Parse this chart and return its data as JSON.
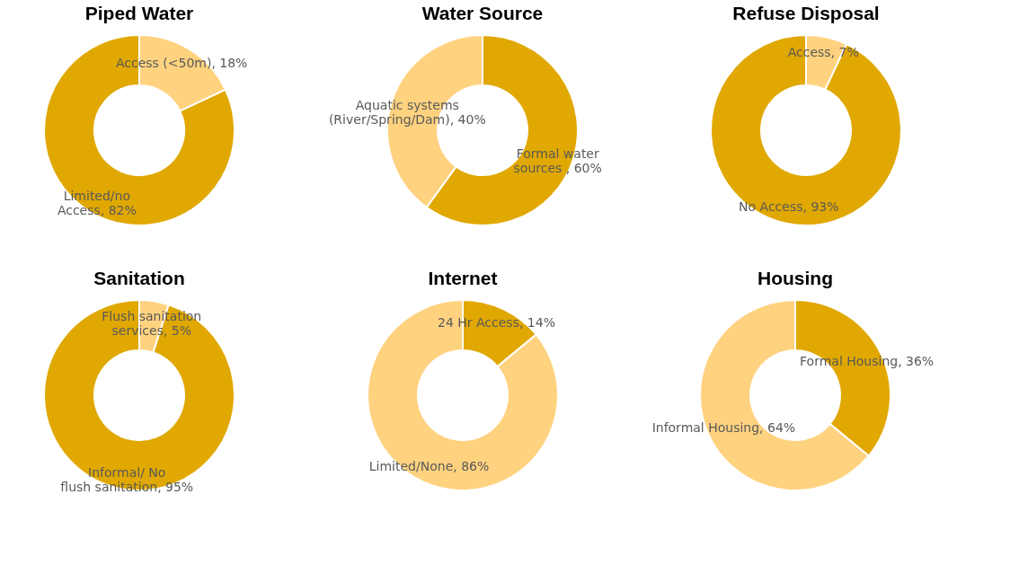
{
  "chart_data": [
    {
      "type": "donut",
      "title": "Piped Water",
      "categories": [
        "Access (<50m)",
        "Limited/no Access"
      ],
      "values": [
        18,
        82
      ],
      "value_labels": [
        "18%",
        "82%"
      ],
      "colors": [
        "#ffd27f",
        "#e0a800"
      ]
    },
    {
      "type": "donut",
      "title": "Water Source",
      "categories": [
        "Formal water sources ",
        "Aquatic systems (River/Spring/Dam)"
      ],
      "values": [
        60,
        40
      ],
      "value_labels": [
        "60%",
        "40%"
      ],
      "colors": [
        "#e0a800",
        "#ffd27f"
      ]
    },
    {
      "type": "donut",
      "title": "Refuse Disposal",
      "categories": [
        "Access",
        "No Access"
      ],
      "values": [
        7,
        93
      ],
      "value_labels": [
        "7%",
        "93%"
      ],
      "colors": [
        "#ffd27f",
        "#e0a800"
      ]
    },
    {
      "type": "donut",
      "title": "Sanitation",
      "categories": [
        "Flush sanitation services",
        "Informal/ No flush sanitation"
      ],
      "values": [
        5,
        95
      ],
      "value_labels": [
        "5%",
        "95%"
      ],
      "colors": [
        "#ffd27f",
        "#e0a800"
      ]
    },
    {
      "type": "donut",
      "title": "Internet",
      "categories": [
        "24 Hr Access",
        "Limited/None"
      ],
      "values": [
        14,
        86
      ],
      "value_labels": [
        "14%",
        "86%"
      ],
      "colors": [
        "#e0a800",
        "#ffd27f"
      ]
    },
    {
      "type": "donut",
      "title": "Housing",
      "categories": [
        "Formal Housing",
        "Informal Housing"
      ],
      "values": [
        36,
        64
      ],
      "value_labels": [
        "36%",
        "64%"
      ],
      "colors": [
        "#e0a800",
        "#ffd27f"
      ]
    }
  ]
}
